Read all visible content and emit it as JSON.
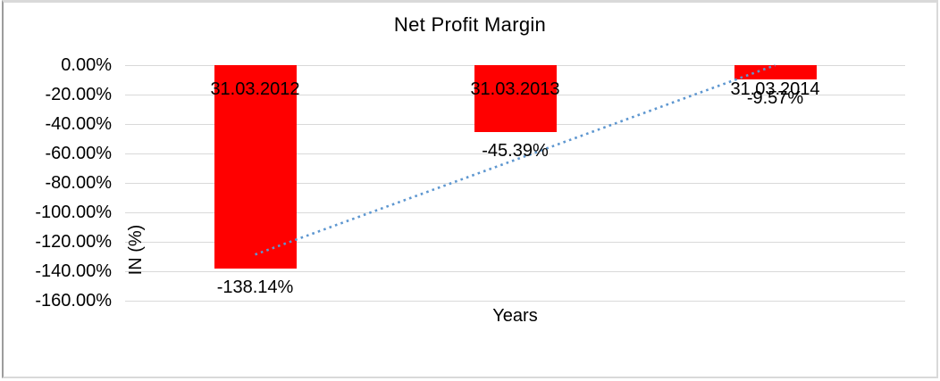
{
  "chart_data": {
    "type": "bar",
    "title": "Net Profit Margin",
    "xlabel": "Years",
    "ylabel": "IN (%)",
    "categories": [
      "31.03.2012",
      "31.03.2013",
      "31.03.2014"
    ],
    "values": [
      -138.14,
      -45.39,
      -9.57
    ],
    "data_labels": [
      "-138.14%",
      "-45.39%",
      "-9.57%"
    ],
    "ylim": [
      -160,
      0
    ],
    "ytick_step": 20,
    "ytick_labels": [
      "0.00%",
      "-20.00%",
      "-40.00%",
      "-60.00%",
      "-80.00%",
      "-100.00%",
      "-120.00%",
      "-140.00%",
      "-160.00%"
    ],
    "grid": true,
    "legend": "none",
    "bar_color": "#FF0000",
    "gridline_color": "#D9D9D9",
    "text_color": "#000000",
    "trendline": {
      "type": "linear",
      "style": "dotted",
      "color": "#5E97D0"
    }
  }
}
